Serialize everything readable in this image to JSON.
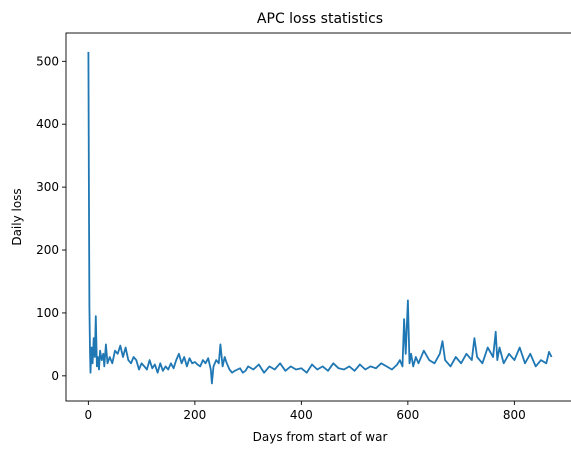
{
  "chart_data": {
    "type": "line",
    "title": "APC loss statistics",
    "xlabel": "Days from start of war",
    "ylabel": "Daily loss",
    "xlim": [
      -42,
      912
    ],
    "ylim": [
      -40,
      545
    ],
    "xticks": [
      0,
      200,
      400,
      600,
      800
    ],
    "yticks": [
      0,
      100,
      200,
      300,
      400,
      500
    ],
    "grid": false,
    "series": [
      {
        "color": "#1f77b4",
        "x": [
          0,
          1,
          2,
          3,
          4,
          5,
          6,
          8,
          10,
          12,
          14,
          16,
          18,
          20,
          22,
          25,
          28,
          30,
          33,
          36,
          40,
          45,
          50,
          55,
          60,
          65,
          70,
          75,
          80,
          85,
          90,
          95,
          100,
          105,
          110,
          115,
          120,
          125,
          130,
          135,
          140,
          145,
          150,
          155,
          160,
          165,
          170,
          175,
          180,
          185,
          190,
          195,
          200,
          205,
          210,
          215,
          220,
          225,
          230,
          232,
          235,
          240,
          245,
          248,
          252,
          256,
          260,
          265,
          270,
          275,
          280,
          285,
          290,
          295,
          300,
          310,
          320,
          330,
          340,
          350,
          360,
          370,
          380,
          390,
          400,
          410,
          420,
          430,
          440,
          450,
          460,
          470,
          480,
          490,
          500,
          510,
          520,
          530,
          540,
          550,
          560,
          570,
          580,
          585,
          590,
          593,
          596,
          600,
          603,
          606,
          610,
          615,
          620,
          630,
          640,
          650,
          660,
          665,
          670,
          680,
          690,
          700,
          710,
          720,
          725,
          730,
          740,
          750,
          760,
          765,
          768,
          772,
          780,
          790,
          800,
          810,
          820,
          830,
          840,
          850,
          860,
          865,
          870
        ],
        "values": [
          515,
          300,
          110,
          40,
          5,
          25,
          45,
          20,
          60,
          30,
          95,
          15,
          30,
          10,
          40,
          25,
          35,
          15,
          50,
          20,
          30,
          20,
          40,
          35,
          48,
          30,
          45,
          25,
          20,
          30,
          25,
          10,
          20,
          15,
          10,
          25,
          12,
          18,
          5,
          20,
          8,
          15,
          10,
          20,
          12,
          25,
          35,
          20,
          30,
          15,
          28,
          20,
          22,
          18,
          15,
          25,
          20,
          28,
          10,
          -12,
          15,
          25,
          20,
          50,
          15,
          30,
          20,
          10,
          5,
          8,
          10,
          12,
          5,
          8,
          15,
          10,
          18,
          5,
          15,
          10,
          20,
          8,
          15,
          10,
          12,
          5,
          18,
          10,
          15,
          8,
          20,
          12,
          10,
          15,
          8,
          18,
          10,
          15,
          12,
          20,
          15,
          10,
          18,
          25,
          15,
          90,
          35,
          120,
          20,
          35,
          15,
          30,
          20,
          40,
          25,
          20,
          35,
          55,
          25,
          15,
          30,
          20,
          35,
          25,
          60,
          30,
          20,
          45,
          30,
          70,
          25,
          45,
          20,
          35,
          25,
          45,
          20,
          35,
          15,
          25,
          20,
          38,
          30
        ]
      }
    ]
  }
}
